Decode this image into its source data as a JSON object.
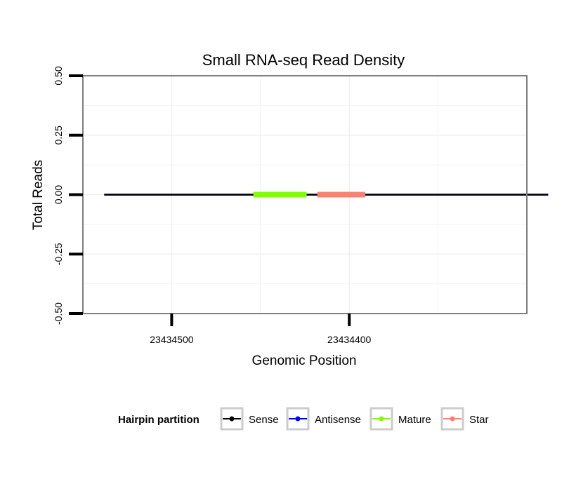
{
  "chart_data": {
    "type": "line",
    "title": "Small RNA-seq Read Density",
    "xlabel": "Genomic Position",
    "ylabel": "Total Reads",
    "x_reversed": true,
    "xlim": [
      23434550,
      23434300
    ],
    "ylim": [
      -0.5,
      0.5
    ],
    "x_ticks": [
      23434500,
      23434400
    ],
    "x_tick_labels": [
      "23434500",
      "23434400"
    ],
    "y_ticks": [
      -0.5,
      -0.25,
      0.0,
      0.25,
      0.5
    ],
    "y_tick_labels": [
      "-0.50",
      "-0.25",
      "0.00",
      "0.25",
      "0.50"
    ],
    "grid": true,
    "series": [
      {
        "name": "Sense",
        "color": "#000000",
        "x": [
          23434538,
          23434288
        ],
        "y": [
          0,
          0
        ]
      },
      {
        "name": "Antisense",
        "color": "#0000ff",
        "x": [
          23434538,
          23434288
        ],
        "y": [
          0,
          0
        ]
      },
      {
        "name": "Mature",
        "color": "#7fff00",
        "x": [
          23434454,
          23434424
        ],
        "y": [
          0,
          0
        ]
      },
      {
        "name": "Star",
        "color": "#fa8072",
        "x": [
          23434418,
          23434391
        ],
        "y": [
          0,
          0
        ]
      }
    ],
    "legend": {
      "title": "Hairpin partition",
      "position": "bottom",
      "entries": [
        "Sense",
        "Antisense",
        "Mature",
        "Star"
      ]
    }
  }
}
